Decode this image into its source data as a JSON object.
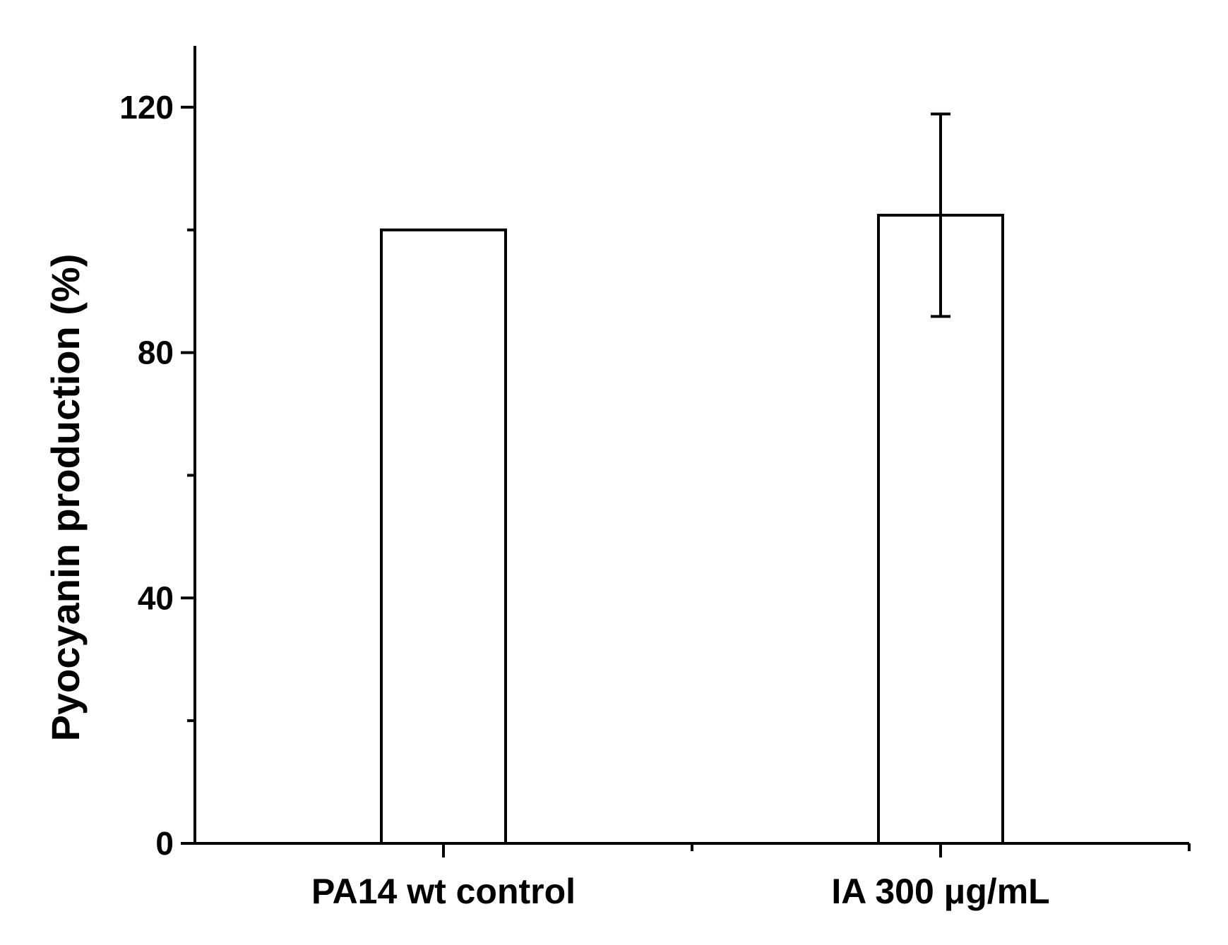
{
  "chart_data": {
    "type": "bar",
    "title": "",
    "xlabel": "",
    "ylabel": "Pyocyanin production (%)",
    "categories": [
      "PA14 wt control",
      "IA 300 μg/mL"
    ],
    "values": [
      100,
      102.4
    ],
    "error": [
      null,
      16.5
    ],
    "ylim": [
      0,
      130
    ],
    "yticks": [
      0,
      40,
      80,
      120
    ],
    "yticks_minor": [
      20,
      60,
      100
    ],
    "grid": false,
    "legend": "none",
    "bar_fill": "#ffffff",
    "bar_stroke": "#000000"
  }
}
